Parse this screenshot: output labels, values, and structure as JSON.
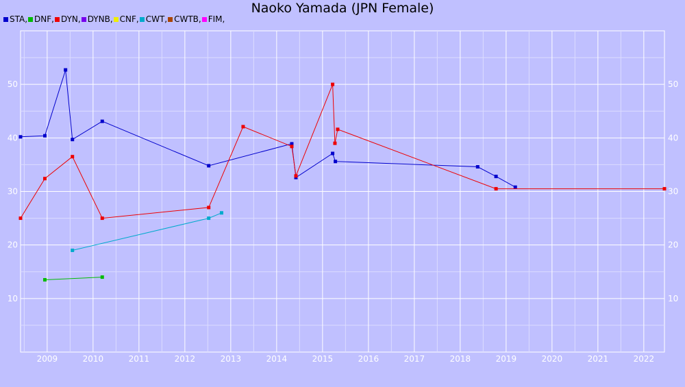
{
  "chart_data": {
    "type": "line",
    "title": "Naoko Yamada (JPN Female)",
    "xlabel": "",
    "ylabel": "",
    "xlim": [
      2008.42,
      2022.45
    ],
    "ylim": [
      0,
      60
    ],
    "grid": true,
    "x_ticks": [
      "2009",
      "2010",
      "2011",
      "2012",
      "2013",
      "2014",
      "2015",
      "2016",
      "2017",
      "2018",
      "2019",
      "2020",
      "2021",
      "2022"
    ],
    "y_ticks": [
      "10",
      "20",
      "30",
      "40",
      "50"
    ],
    "legend_position": "top-left",
    "legend": [
      {
        "label": "STA,",
        "color": "#0000cc"
      },
      {
        "label": "DNF,",
        "color": "#00bb00"
      },
      {
        "label": "DYN,",
        "color": "#ee0000"
      },
      {
        "label": "DYNB,",
        "color": "#7700ee"
      },
      {
        "label": "CNF,",
        "color": "#eeee00"
      },
      {
        "label": "CWT,",
        "color": "#00aacc"
      },
      {
        "label": "CWTB,",
        "color": "#aa4400"
      },
      {
        "label": "FIM,",
        "color": "#ff00ff"
      }
    ],
    "series": [
      {
        "name": "STA",
        "color": "#0000cc",
        "points": [
          [
            2008.42,
            40.2
          ],
          [
            2008.95,
            40.4
          ],
          [
            2009.4,
            52.7
          ],
          [
            2009.55,
            39.7
          ],
          [
            2010.2,
            43.1
          ],
          [
            2012.52,
            34.8
          ],
          [
            2014.33,
            38.9
          ],
          [
            2014.42,
            32.6
          ],
          [
            2015.22,
            37.1
          ],
          [
            2015.28,
            35.6
          ],
          [
            2018.38,
            34.6
          ],
          [
            2018.78,
            32.8
          ],
          [
            2019.2,
            30.8
          ]
        ]
      },
      {
        "name": "DNF",
        "color": "#00bb00",
        "points": [
          [
            2008.95,
            13.5
          ],
          [
            2010.2,
            14.0
          ]
        ]
      },
      {
        "name": "DYN",
        "color": "#ee0000",
        "points": [
          [
            2008.42,
            25.0
          ],
          [
            2008.95,
            32.4
          ],
          [
            2009.55,
            36.5
          ],
          [
            2010.2,
            25.0
          ],
          [
            2012.52,
            27.0
          ],
          [
            2013.27,
            42.1
          ],
          [
            2014.33,
            38.4
          ],
          [
            2014.42,
            32.9
          ],
          [
            2015.22,
            50.0
          ],
          [
            2015.27,
            39.0
          ],
          [
            2015.33,
            41.6
          ],
          [
            2018.78,
            30.5
          ],
          [
            2022.45,
            30.5
          ]
        ]
      },
      {
        "name": "CWT",
        "color": "#00aacc",
        "points": [
          [
            2009.55,
            19.0
          ],
          [
            2012.52,
            25.0
          ],
          [
            2012.8,
            26.0
          ]
        ]
      }
    ]
  }
}
